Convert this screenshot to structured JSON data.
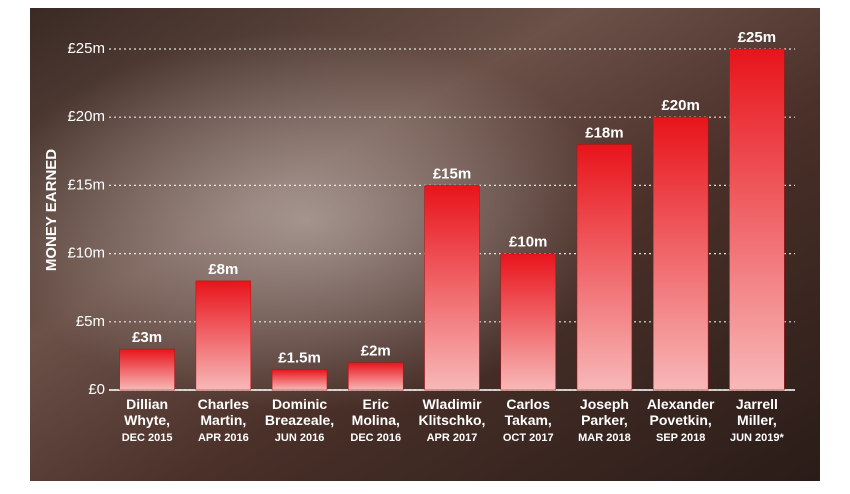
{
  "chart_data": {
    "type": "bar",
    "y_label": "MONEY EARNED",
    "categories": [
      "Dillian Whyte,",
      "Charles Martin,",
      "Dominic Breazeale,",
      "Eric Molina,",
      "Wladimir Klitschko,",
      "Carlos Takam,",
      "Joseph Parker,",
      "Alexander Povetkin,",
      "Jarrell Miller,"
    ],
    "category_dates": [
      "DEC 2015",
      "APR 2016",
      "JUN 2016",
      "DEC 2016",
      "APR 2017",
      "OCT 2017",
      "MAR 2018",
      "SEP 2018",
      "JUN 2019*"
    ],
    "values": [
      3,
      8,
      1.5,
      2,
      15,
      10,
      18,
      20,
      25
    ],
    "value_labels": [
      "£3m",
      "£8m",
      "£1.5m",
      "£2m",
      "£15m",
      "£10m",
      "£18m",
      "£20m",
      "£25m"
    ],
    "color": "#e8141b",
    "ylim": [
      0,
      25
    ],
    "yticks": [
      {
        "value": 0,
        "label": "£0"
      },
      {
        "value": 5,
        "label": "£5m"
      },
      {
        "value": 10,
        "label": "£10m"
      },
      {
        "value": 15,
        "label": "£15m"
      },
      {
        "value": 20,
        "label": "£20m"
      },
      {
        "value": 25,
        "label": "£25m"
      }
    ],
    "grid": true
  }
}
